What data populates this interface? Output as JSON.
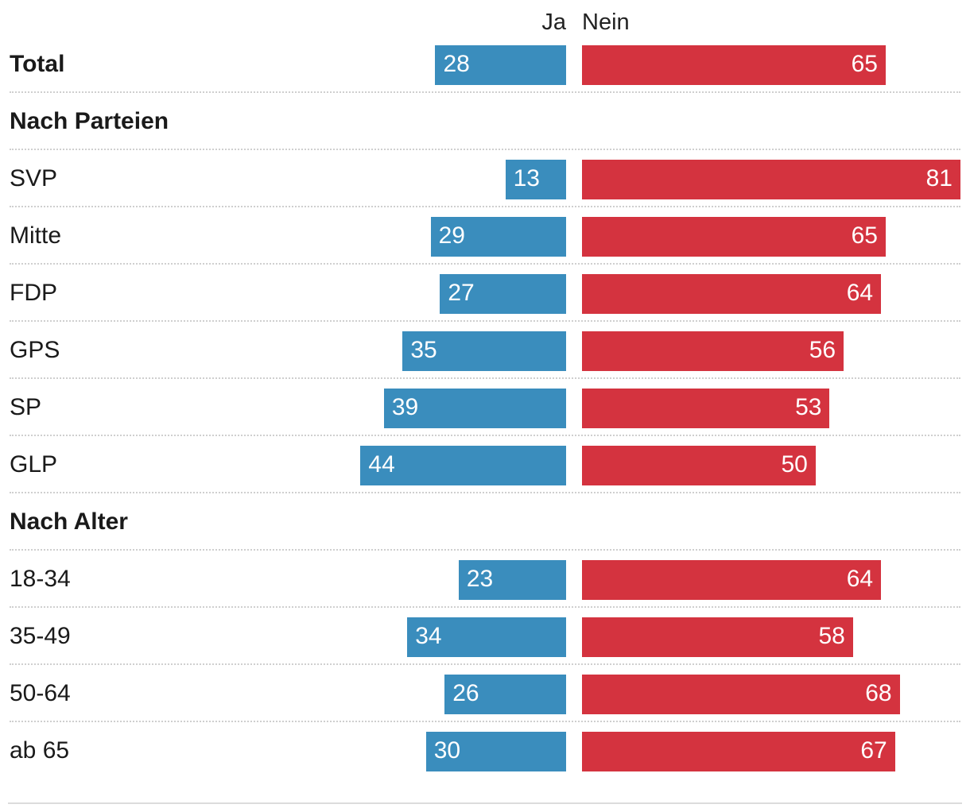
{
  "chart_data": {
    "type": "bar",
    "orientation": "horizontal-diverging",
    "series": [
      {
        "name": "Ja",
        "color": "#3a8dbd"
      },
      {
        "name": "Nein",
        "color": "#d4333f"
      }
    ],
    "rows": [
      {
        "label": "Total",
        "kind": "total",
        "ja": 28,
        "nein": 65
      },
      {
        "label": "Nach Parteien",
        "kind": "section"
      },
      {
        "label": "SVP",
        "kind": "item",
        "ja": 13,
        "nein": 81
      },
      {
        "label": "Mitte",
        "kind": "item",
        "ja": 29,
        "nein": 65
      },
      {
        "label": "FDP",
        "kind": "item",
        "ja": 27,
        "nein": 64
      },
      {
        "label": "GPS",
        "kind": "item",
        "ja": 35,
        "nein": 56
      },
      {
        "label": "SP",
        "kind": "item",
        "ja": 39,
        "nein": 53
      },
      {
        "label": "GLP",
        "kind": "item",
        "ja": 44,
        "nein": 50
      },
      {
        "label": "Nach Alter",
        "kind": "section"
      },
      {
        "label": "18-34",
        "kind": "item",
        "ja": 23,
        "nein": 64
      },
      {
        "label": "35-49",
        "kind": "item",
        "ja": 34,
        "nein": 58
      },
      {
        "label": "50-64",
        "kind": "item",
        "ja": 26,
        "nein": 68
      },
      {
        "label": "ab 65",
        "kind": "item",
        "ja": 30,
        "nein": 67
      }
    ],
    "xlim": [
      0,
      81
    ],
    "unit": "%"
  }
}
